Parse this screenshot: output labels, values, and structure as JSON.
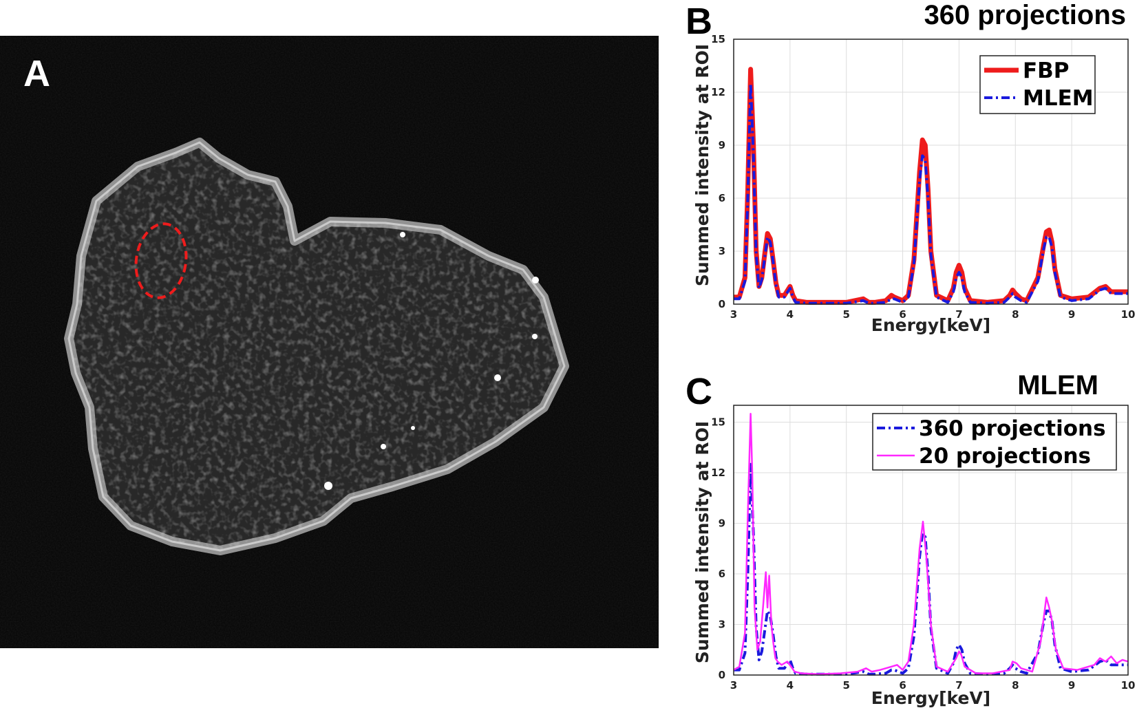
{
  "panels": {
    "a": {
      "letter": "A"
    },
    "b": {
      "letter": "B",
      "title": "360 projections"
    },
    "c": {
      "letter": "C",
      "title": "MLEM"
    }
  },
  "colors": {
    "fbp": "#ee1c1c",
    "mlem": "#1a1add",
    "p20": "#ff28ff",
    "roi": "#ee1c1c"
  },
  "chart_data": [
    {
      "type": "line",
      "title": "360 projections",
      "xlabel": "Energy[keV]",
      "ylabel": "Summed intensity at ROI",
      "xlim": [
        3,
        10
      ],
      "ylim": [
        0,
        15
      ],
      "xticks": [
        "3",
        "4",
        "5",
        "6",
        "7",
        "8",
        "9",
        "10"
      ],
      "yticks": [
        "0",
        "3",
        "6",
        "9",
        "12",
        "15"
      ],
      "grid": true,
      "legend_position": "top-right",
      "series": [
        {
          "name": "FBP",
          "style": "solid-thick",
          "x": [
            3,
            3.1,
            3.2,
            3.25,
            3.3,
            3.35,
            3.4,
            3.45,
            3.5,
            3.55,
            3.6,
            3.65,
            3.7,
            3.75,
            3.8,
            3.9,
            4.0,
            4.05,
            4.1,
            4.3,
            4.6,
            5.0,
            5.3,
            5.4,
            5.5,
            5.7,
            5.8,
            5.85,
            6.0,
            6.1,
            6.2,
            6.3,
            6.35,
            6.4,
            6.45,
            6.5,
            6.6,
            6.8,
            6.9,
            6.95,
            7.0,
            7.05,
            7.1,
            7.2,
            7.5,
            7.8,
            7.9,
            7.95,
            8.0,
            8.1,
            8.2,
            8.4,
            8.5,
            8.55,
            8.6,
            8.65,
            8.7,
            8.8,
            9.0,
            9.3,
            9.5,
            9.6,
            9.7,
            10.0
          ],
          "y": [
            0.4,
            0.4,
            1.5,
            6.5,
            13.3,
            9.0,
            3.0,
            1.0,
            1.5,
            2.8,
            4.0,
            3.7,
            2.5,
            1.2,
            0.5,
            0.5,
            1.0,
            0.5,
            0.2,
            0.1,
            0.1,
            0.1,
            0.3,
            0.1,
            0.1,
            0.2,
            0.5,
            0.4,
            0.2,
            0.5,
            2.5,
            7.5,
            9.3,
            9.0,
            6.5,
            3.0,
            0.5,
            0.2,
            0.9,
            1.8,
            2.2,
            1.8,
            0.9,
            0.2,
            0.1,
            0.2,
            0.5,
            0.8,
            0.6,
            0.3,
            0.2,
            1.5,
            3.3,
            4.1,
            4.2,
            3.5,
            2.0,
            0.5,
            0.3,
            0.4,
            0.9,
            1.0,
            0.7,
            0.7
          ]
        },
        {
          "name": "MLEM",
          "style": "dash-dot",
          "x": [
            3,
            3.1,
            3.2,
            3.25,
            3.3,
            3.35,
            3.4,
            3.45,
            3.5,
            3.55,
            3.6,
            3.65,
            3.7,
            3.75,
            3.8,
            3.9,
            4.0,
            4.05,
            4.1,
            4.3,
            4.6,
            5.0,
            5.3,
            5.4,
            5.5,
            5.7,
            5.8,
            5.85,
            6.0,
            6.1,
            6.2,
            6.3,
            6.35,
            6.4,
            6.45,
            6.5,
            6.6,
            6.8,
            6.9,
            6.95,
            7.0,
            7.05,
            7.1,
            7.2,
            7.5,
            7.8,
            7.9,
            7.95,
            8.0,
            8.1,
            8.2,
            8.4,
            8.5,
            8.55,
            8.6,
            8.65,
            8.7,
            8.8,
            9.0,
            9.3,
            9.5,
            9.6,
            9.7,
            10.0
          ],
          "y": [
            0.3,
            0.3,
            1.3,
            6.0,
            12.5,
            8.4,
            2.8,
            0.9,
            1.4,
            2.6,
            3.8,
            3.5,
            2.4,
            1.1,
            0.4,
            0.4,
            0.9,
            0.4,
            0.1,
            0.05,
            0.05,
            0.05,
            0.2,
            0.05,
            0.05,
            0.1,
            0.3,
            0.3,
            0.1,
            0.4,
            2.3,
            7.0,
            8.4,
            8.2,
            6.0,
            2.8,
            0.4,
            0.1,
            0.7,
            1.5,
            1.8,
            1.5,
            0.7,
            0.1,
            0.05,
            0.1,
            0.4,
            0.6,
            0.4,
            0.2,
            0.1,
            1.3,
            3.1,
            3.8,
            3.8,
            3.2,
            1.8,
            0.4,
            0.2,
            0.3,
            0.8,
            0.9,
            0.6,
            0.6
          ]
        }
      ]
    },
    {
      "type": "line",
      "title": "MLEM",
      "xlabel": "Energy[keV]",
      "ylabel": "Summed intensity at ROI",
      "xlim": [
        3,
        10
      ],
      "ylim": [
        0,
        16
      ],
      "xticks": [
        "3",
        "4",
        "5",
        "6",
        "7",
        "8",
        "9",
        "10"
      ],
      "yticks": [
        "0",
        "3",
        "6",
        "9",
        "12",
        "15"
      ],
      "grid": true,
      "legend_position": "top-right",
      "series": [
        {
          "name": "360 projections",
          "style": "dash-dot",
          "x": [
            3,
            3.1,
            3.2,
            3.25,
            3.3,
            3.35,
            3.4,
            3.45,
            3.5,
            3.55,
            3.6,
            3.65,
            3.7,
            3.75,
            3.8,
            3.9,
            4.0,
            4.05,
            4.1,
            4.3,
            4.6,
            5.0,
            5.3,
            5.4,
            5.5,
            5.7,
            5.8,
            5.85,
            6.0,
            6.1,
            6.2,
            6.3,
            6.35,
            6.4,
            6.45,
            6.5,
            6.6,
            6.8,
            6.9,
            6.95,
            7.0,
            7.05,
            7.1,
            7.2,
            7.5,
            7.8,
            7.9,
            7.95,
            8.0,
            8.1,
            8.2,
            8.4,
            8.5,
            8.55,
            8.6,
            8.65,
            8.7,
            8.8,
            9.0,
            9.3,
            9.5,
            9.6,
            9.7,
            10.0
          ],
          "y": [
            0.3,
            0.3,
            1.3,
            6.0,
            12.5,
            8.4,
            2.8,
            0.9,
            1.4,
            2.6,
            3.8,
            3.5,
            2.4,
            1.1,
            0.4,
            0.4,
            0.9,
            0.4,
            0.1,
            0.05,
            0.05,
            0.05,
            0.2,
            0.05,
            0.05,
            0.1,
            0.3,
            0.3,
            0.1,
            0.4,
            2.3,
            7.0,
            8.4,
            8.2,
            6.0,
            2.8,
            0.4,
            0.1,
            0.7,
            1.5,
            1.8,
            1.5,
            0.7,
            0.1,
            0.05,
            0.1,
            0.4,
            0.6,
            0.4,
            0.2,
            0.1,
            1.3,
            3.1,
            3.8,
            3.8,
            3.2,
            1.8,
            0.4,
            0.2,
            0.3,
            0.8,
            0.9,
            0.6,
            0.6
          ]
        },
        {
          "name": "20 projections",
          "style": "solid-thin",
          "x": [
            3,
            3.1,
            3.2,
            3.25,
            3.3,
            3.33,
            3.37,
            3.42,
            3.47,
            3.52,
            3.57,
            3.6,
            3.63,
            3.67,
            3.7,
            3.74,
            3.78,
            3.85,
            3.95,
            4.02,
            4.08,
            4.2,
            4.5,
            4.9,
            5.2,
            5.35,
            5.45,
            5.6,
            5.8,
            5.9,
            6.0,
            6.1,
            6.2,
            6.3,
            6.36,
            6.42,
            6.5,
            6.6,
            6.8,
            6.95,
            7.0,
            7.04,
            7.1,
            7.3,
            7.6,
            7.9,
            7.95,
            8.02,
            8.1,
            8.3,
            8.45,
            8.55,
            8.6,
            8.65,
            8.72,
            8.85,
            9.1,
            9.4,
            9.5,
            9.6,
            9.7,
            9.8,
            9.9,
            10.0
          ],
          "y": [
            0.3,
            0.5,
            2.5,
            9.5,
            15.5,
            12.0,
            4.0,
            1.5,
            2.0,
            4.0,
            6.1,
            4.0,
            5.9,
            3.0,
            2.0,
            1.0,
            0.8,
            0.6,
            0.8,
            0.5,
            0.2,
            0.1,
            0.05,
            0.1,
            0.2,
            0.4,
            0.2,
            0.3,
            0.5,
            0.6,
            0.3,
            0.8,
            3.0,
            7.5,
            9.1,
            7.0,
            3.0,
            0.5,
            0.2,
            1.0,
            1.4,
            1.2,
            0.5,
            0.1,
            0.1,
            0.3,
            0.8,
            0.7,
            0.4,
            0.2,
            2.0,
            4.6,
            4.0,
            3.2,
            1.5,
            0.4,
            0.3,
            0.6,
            1.0,
            0.8,
            1.1,
            0.7,
            0.9,
            0.8
          ]
        }
      ]
    }
  ]
}
